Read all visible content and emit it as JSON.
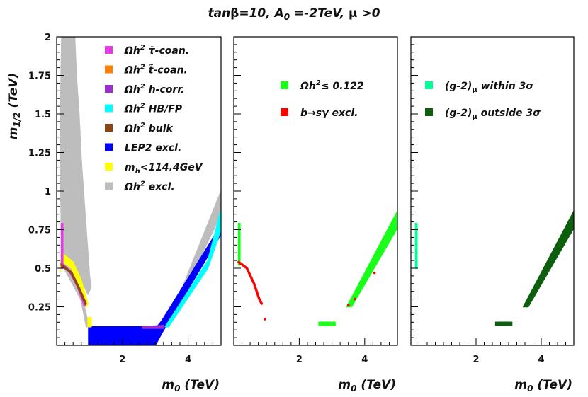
{
  "title": "tanβ=10, A0 =-2TeV, μ >0",
  "title_parts": {
    "pre": "tan",
    "beta": "β",
    "eq": "=10, A",
    "a_sub": "0",
    "mid": " =-2TeV, ",
    "mu": "μ",
    "post": " >0"
  },
  "chart_data": [
    {
      "type": "scatter",
      "panel": "left",
      "xlabel": "m0 (TeV)",
      "ylabel": "m1/2 (TeV)",
      "xlim": [
        0,
        5
      ],
      "ylim": [
        0,
        2
      ],
      "xticks": [
        "2",
        "4"
      ],
      "yticks": [
        "0.25",
        "0.5",
        "0.75",
        "1",
        "1.25",
        "1.5",
        "1.75",
        "2"
      ],
      "legend": [
        {
          "label": "Ωh2 τ̃-coan.",
          "color": "#e83be8"
        },
        {
          "label": "Ωh2 t̃-coan.",
          "color": "#ff8000"
        },
        {
          "label": "Ωh2 h-corr.",
          "color": "#9c2ed0"
        },
        {
          "label": "Ωh2 HB/FP",
          "color": "#00ffff"
        },
        {
          "label": "Ωh2 bulk",
          "color": "#8b4513"
        },
        {
          "label": "LEP2 excl.",
          "color": "#0000ff"
        },
        {
          "label": "mh<114.4GeV",
          "color": "#ffff00"
        },
        {
          "label": "Ωh2 excl.",
          "color": "#bdbdbd"
        }
      ],
      "series": [
        {
          "name": "Ωh2 excl.",
          "color": "#bdbdbd",
          "shape": "polygon",
          "points": [
            [
              0.15,
              2.0
            ],
            [
              0.55,
              2.0
            ],
            [
              0.6,
              1.75
            ],
            [
              0.68,
              1.5
            ],
            [
              0.75,
              1.2
            ],
            [
              0.85,
              0.9
            ],
            [
              0.95,
              0.6
            ],
            [
              1.0,
              0.45
            ],
            [
              1.05,
              0.38
            ],
            [
              0.95,
              0.33
            ],
            [
              0.8,
              0.4
            ],
            [
              0.6,
              0.48
            ],
            [
              0.2,
              0.53
            ],
            [
              0.15,
              0.6
            ],
            [
              0.12,
              1.0
            ],
            [
              0.12,
              1.6
            ]
          ]
        },
        {
          "name": "Ωh2 excl.",
          "color": "#bdbdbd",
          "shape": "polygon",
          "points": [
            [
              0.1,
              0.55
            ],
            [
              0.55,
              0.5
            ],
            [
              0.9,
              0.12
            ],
            [
              3.0,
              0.12
            ],
            [
              3.4,
              0.15
            ],
            [
              5.0,
              1.0
            ],
            [
              5.0,
              0.85
            ],
            [
              3.35,
              0.12
            ],
            [
              3.0,
              0.1
            ],
            [
              1.0,
              0.1
            ],
            [
              0.85,
              0.25
            ]
          ]
        },
        {
          "name": "LEP2 excl.",
          "color": "#0000ff",
          "shape": "polygon",
          "points": [
            [
              0.97,
              0.0
            ],
            [
              0.97,
              0.12
            ],
            [
              3.05,
              0.12
            ],
            [
              3.2,
              0.16
            ],
            [
              5.0,
              0.78
            ],
            [
              5.0,
              0.72
            ],
            [
              3.2,
              0.08
            ],
            [
              3.0,
              0.0
            ]
          ]
        },
        {
          "name": "Ωh2 HB/FP",
          "color": "#00ffff",
          "shape": "polygon",
          "points": [
            [
              3.3,
              0.12
            ],
            [
              4.6,
              0.55
            ],
            [
              5.0,
              0.88
            ],
            [
              5.0,
              0.75
            ],
            [
              4.6,
              0.5
            ],
            [
              3.4,
              0.12
            ]
          ]
        },
        {
          "name": "Ωh2 h-corr.",
          "color": "#9c2ed0",
          "shape": "polygon",
          "points": [
            [
              2.6,
              0.12
            ],
            [
              3.25,
              0.13
            ],
            [
              3.25,
              0.11
            ],
            [
              2.6,
              0.11
            ]
          ]
        },
        {
          "name": "mh<114.4GeV",
          "color": "#ffff00",
          "shape": "polygon",
          "points": [
            [
              0.12,
              0.48
            ],
            [
              0.12,
              0.55
            ],
            [
              0.45,
              0.5
            ],
            [
              0.7,
              0.38
            ],
            [
              0.9,
              0.25
            ],
            [
              0.95,
              0.27
            ],
            [
              0.75,
              0.42
            ],
            [
              0.5,
              0.54
            ],
            [
              0.15,
              0.6
            ]
          ]
        },
        {
          "name": "mh<114.4GeV",
          "color": "#ffff00",
          "shape": "polygon",
          "points": [
            [
              0.95,
              0.12
            ],
            [
              0.95,
              0.18
            ],
            [
              1.05,
              0.18
            ],
            [
              1.05,
              0.12
            ]
          ]
        },
        {
          "name": "Ωh2 τ̃-coan.",
          "color": "#e83be8",
          "shape": "polygon",
          "points": [
            [
              0.14,
              0.5
            ],
            [
              0.14,
              0.79
            ],
            [
              0.19,
              0.79
            ],
            [
              0.19,
              0.5
            ]
          ]
        },
        {
          "name": "Ωh2 τ̃-coan.",
          "color": "#e83be8",
          "shape": "line",
          "points": [
            [
              0.15,
              0.53
            ],
            [
              0.4,
              0.48
            ],
            [
              0.65,
              0.38
            ],
            [
              0.85,
              0.26
            ]
          ]
        },
        {
          "name": "Ωh2 bulk",
          "color": "#8b4513",
          "shape": "line",
          "points": [
            [
              0.15,
              0.52
            ],
            [
              0.45,
              0.47
            ],
            [
              0.7,
              0.36
            ],
            [
              0.88,
              0.27
            ]
          ]
        }
      ]
    },
    {
      "type": "scatter",
      "panel": "middle",
      "xlabel": "m0 (TeV)",
      "xlim": [
        0,
        5
      ],
      "ylim": [
        0,
        2
      ],
      "xticks": [
        "2",
        "4"
      ],
      "legend": [
        {
          "label": "Ωh2≤ 0.122",
          "color": "#19ff19"
        },
        {
          "label": "b→sγ excl.",
          "color": "#ff0000"
        }
      ],
      "series": [
        {
          "name": "Ωh2≤ 0.122",
          "color": "#19ff19",
          "shape": "polygon",
          "points": [
            [
              3.45,
              0.25
            ],
            [
              5.0,
              0.87
            ],
            [
              5.0,
              0.76
            ],
            [
              3.6,
              0.25
            ]
          ]
        },
        {
          "name": "Ωh2≤ 0.122",
          "color": "#19ff19",
          "shape": "polygon",
          "points": [
            [
              2.6,
              0.13
            ],
            [
              2.6,
              0.15
            ],
            [
              3.1,
              0.15
            ],
            [
              3.1,
              0.13
            ]
          ]
        },
        {
          "name": "Ωh2≤ 0.122",
          "color": "#19ff19",
          "shape": "polygon",
          "points": [
            [
              0.14,
              0.52
            ],
            [
              0.14,
              0.79
            ],
            [
              0.19,
              0.79
            ],
            [
              0.19,
              0.52
            ]
          ]
        },
        {
          "name": "b→sγ excl.",
          "color": "#ff0000",
          "shape": "line",
          "points": [
            [
              0.15,
              0.54
            ],
            [
              0.4,
              0.5
            ],
            [
              0.62,
              0.4
            ],
            [
              0.78,
              0.3
            ],
            [
              0.85,
              0.27
            ]
          ]
        },
        {
          "name": "b→sγ excl.",
          "color": "#ff0000",
          "shape": "dots",
          "points": [
            [
              0.95,
              0.17
            ],
            [
              3.5,
              0.26
            ],
            [
              4.3,
              0.47
            ],
            [
              3.7,
              0.3
            ]
          ]
        }
      ]
    },
    {
      "type": "scatter",
      "panel": "right",
      "xlabel": "m0 (TeV)",
      "xlim": [
        0,
        5
      ],
      "ylim": [
        0,
        2
      ],
      "xticks": [
        "2",
        "4"
      ],
      "legend": [
        {
          "label": "(g-2)μ within 3σ",
          "color": "#00ff99"
        },
        {
          "label": "(g-2)μ outside 3σ",
          "color": "#0d5e0d"
        }
      ],
      "series": [
        {
          "name": "(g-2)μ outside 3σ",
          "color": "#0d5e0d",
          "shape": "polygon",
          "points": [
            [
              3.45,
              0.25
            ],
            [
              5.0,
              0.87
            ],
            [
              5.0,
              0.76
            ],
            [
              3.6,
              0.25
            ]
          ]
        },
        {
          "name": "(g-2)μ outside 3σ",
          "color": "#0d5e0d",
          "shape": "polygon",
          "points": [
            [
              2.6,
              0.13
            ],
            [
              2.6,
              0.15
            ],
            [
              3.1,
              0.15
            ],
            [
              3.1,
              0.13
            ]
          ]
        },
        {
          "name": "(g-2)μ within 3σ",
          "color": "#00ff99",
          "shape": "polygon",
          "points": [
            [
              0.14,
              0.5
            ],
            [
              0.14,
              0.79
            ],
            [
              0.19,
              0.79
            ],
            [
              0.19,
              0.5
            ]
          ]
        }
      ]
    }
  ]
}
